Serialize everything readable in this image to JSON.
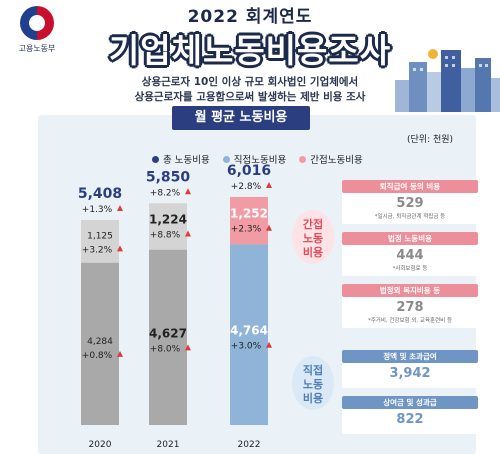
{
  "header": {
    "org": "고용노동부",
    "year_title": "2022 회계연도",
    "title": "기업체노동비용조사",
    "subtitle_1": "상용근로자 10인 이상 규모 회사법인 기업체에서",
    "subtitle_2": "상용근로자를 고용함으로써 발생하는 제반 비용 조사"
  },
  "section_title": "월 평균 노동비용",
  "unit": "(단위: 천원)",
  "legend": {
    "total": "총 노동비용",
    "direct": "직접노동비용",
    "indirect": "간접노동비용"
  },
  "tags": {
    "indirect": "간접\n노동\n비용",
    "direct": "직접\n노동\n비용"
  },
  "colors": {
    "direct_past": "#a9a9a9",
    "indirect_past": "#d4d4d4",
    "direct_2022": "#8fb4d8",
    "indirect_2022": "#f19ba5",
    "title_navy": "#1b2a4a",
    "increase_arrow": "#e03a3a"
  },
  "chart_data": {
    "type": "bar",
    "stacked": true,
    "categories": [
      "2020",
      "2021",
      "2022"
    ],
    "series": [
      {
        "name": "직접노동비용",
        "values": [
          4284,
          4627,
          4764
        ],
        "change_labels": [
          "+0.8%",
          "+8.0%",
          "+3.0%"
        ]
      },
      {
        "name": "간접노동비용",
        "values": [
          1125,
          1224,
          1252
        ],
        "change_labels": [
          "+3.2%",
          "+8.8%",
          "+2.3%"
        ]
      }
    ],
    "totals": [
      5408,
      5850,
      6016
    ],
    "total_labels": [
      "5,408",
      "5,850",
      "6,016"
    ],
    "total_change_labels": [
      "+1.3%",
      "+8.2%",
      "+2.8%"
    ],
    "direct_labels": [
      "4,284",
      "4,627",
      "4,764"
    ],
    "indirect_labels": [
      "1,125",
      "1,224",
      "1,252"
    ],
    "ylim": [
      0,
      6016
    ],
    "grid": false,
    "legend_position": "top"
  },
  "side_indirect": [
    {
      "title": "퇴직급여 등의 비용",
      "value": "529",
      "note": "*일시금, 퇴직금관계 적립금 등"
    },
    {
      "title": "법정 노동비용",
      "value": "444",
      "note": "*사회보험료 등"
    },
    {
      "title": "법정외 복지비용 등",
      "value": "278",
      "note": "*주거비, 건강보험 외, 교육훈련비 등"
    }
  ],
  "side_direct": [
    {
      "title": "정액 및 초과급여",
      "value": "3,942"
    },
    {
      "title": "상여금 및 성과급",
      "value": "822"
    }
  ]
}
